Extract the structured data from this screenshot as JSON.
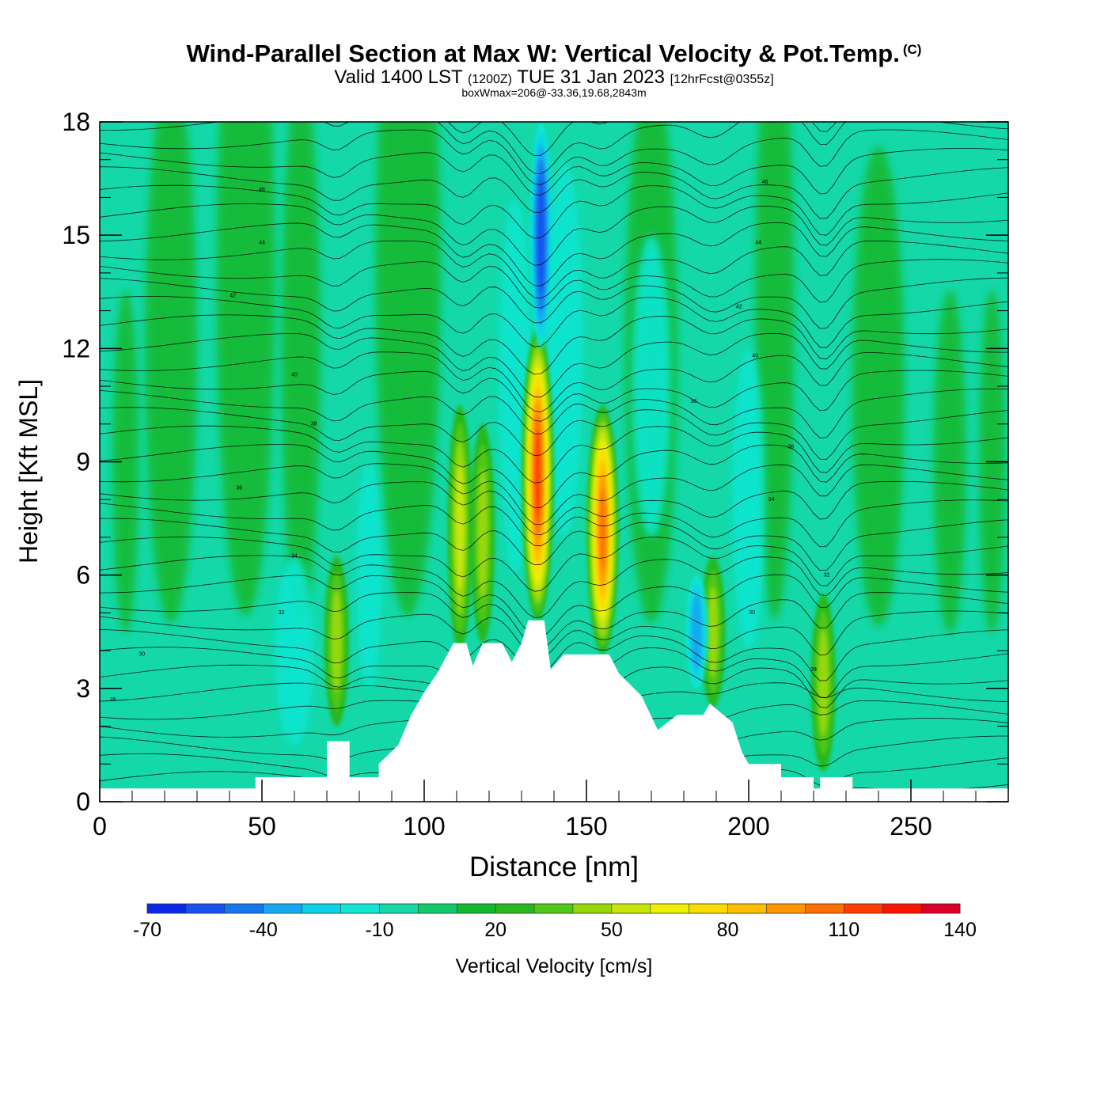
{
  "header": {
    "title": "Wind-Parallel Section at Max W: Vertical Velocity & Pot.Temp.",
    "copyright_mark": "(C)",
    "subtitle_main": "Valid 1400 LST",
    "subtitle_utc": "(1200Z)",
    "subtitle_date": "TUE 31 Jan 2023",
    "subtitle_fcst": "[12hrFcst@0355z]",
    "subsubtitle": "boxWmax=206@-33.36,19.68,2843m"
  },
  "chart_data": {
    "type": "heatmap",
    "title": "Wind-Parallel Section at Max W: Vertical Velocity & Pot.Temp.",
    "xlabel": "Distance [nm]",
    "ylabel": "Height [Kft MSL]",
    "xlim": [
      0,
      280
    ],
    "ylim": [
      0,
      18
    ],
    "x_ticks": [
      "0",
      "50",
      "100",
      "150",
      "200",
      "250"
    ],
    "y_ticks": [
      "0",
      "3",
      "6",
      "9",
      "12",
      "15",
      "18"
    ],
    "colorbar": {
      "label": "Vertical Velocity [cm/s]",
      "range": [
        -70,
        140
      ],
      "step": 10,
      "tick_labels": [
        "-70",
        "-40",
        "-10",
        "20",
        "50",
        "80",
        "110",
        "140"
      ],
      "colors": [
        "#0a28e6",
        "#1950f0",
        "#1478ec",
        "#14a8f0",
        "#0ad2e8",
        "#10e6d2",
        "#14d8a8",
        "#10cc68",
        "#14b82c",
        "#28b81e",
        "#50c818",
        "#96d80a",
        "#c8e60a",
        "#f0f000",
        "#fadc00",
        "#ffbe00",
        "#ff9600",
        "#ff6e00",
        "#ff3c00",
        "#fa1400",
        "#dc0028",
        "#b40050"
      ]
    },
    "terrain_nm_kft": [
      [
        0,
        0.35
      ],
      [
        48,
        0.35
      ],
      [
        48,
        0.65
      ],
      [
        70,
        0.65
      ],
      [
        70,
        1.6
      ],
      [
        77,
        1.6
      ],
      [
        77,
        0.65
      ],
      [
        86,
        0.65
      ],
      [
        86,
        1.0
      ],
      [
        92,
        1.5
      ],
      [
        96,
        2.3
      ],
      [
        100,
        2.9
      ],
      [
        104,
        3.4
      ],
      [
        109,
        4.2
      ],
      [
        113,
        4.2
      ],
      [
        115,
        3.6
      ],
      [
        118,
        4.2
      ],
      [
        124,
        4.2
      ],
      [
        127,
        3.7
      ],
      [
        130,
        4.2
      ],
      [
        132,
        4.8
      ],
      [
        137,
        4.8
      ],
      [
        139,
        3.5
      ],
      [
        143,
        3.9
      ],
      [
        157,
        3.9
      ],
      [
        160,
        3.4
      ],
      [
        167,
        2.8
      ],
      [
        172,
        1.9
      ],
      [
        178,
        2.3
      ],
      [
        186,
        2.3
      ],
      [
        188,
        2.6
      ],
      [
        195,
        2.1
      ],
      [
        198,
        1.3
      ],
      [
        200,
        1.0
      ],
      [
        210,
        1.0
      ],
      [
        210,
        0.65
      ],
      [
        220,
        0.65
      ],
      [
        220,
        0.35
      ],
      [
        222,
        0.35
      ],
      [
        222,
        0.65
      ],
      [
        232,
        0.65
      ],
      [
        232,
        0.35
      ],
      [
        280,
        0.35
      ]
    ],
    "updraft_cores": [
      {
        "center_nm": 73,
        "bottom_kft": 2.0,
        "top_kft": 6.5,
        "peak_cms": 40
      },
      {
        "center_nm": 111,
        "bottom_kft": 4.0,
        "top_kft": 10.5,
        "peak_cms": 50
      },
      {
        "center_nm": 118,
        "bottom_kft": 4.2,
        "top_kft": 10.0,
        "peak_cms": 40
      },
      {
        "center_nm": 135,
        "bottom_kft": 4.8,
        "top_kft": 12.5,
        "peak_cms": 110
      },
      {
        "center_nm": 155,
        "bottom_kft": 3.9,
        "top_kft": 10.5,
        "peak_cms": 100
      },
      {
        "center_nm": 189,
        "bottom_kft": 2.5,
        "top_kft": 6.5,
        "peak_cms": 40
      },
      {
        "center_nm": 223,
        "bottom_kft": 0.8,
        "top_kft": 5.5,
        "peak_cms": 40
      }
    ],
    "downdraft_cores": [
      {
        "center_nm": 136,
        "bottom_kft": 12.0,
        "top_kft": 18.0,
        "peak_cms": -60
      },
      {
        "center_nm": 184,
        "bottom_kft": 3.0,
        "top_kft": 6.0,
        "peak_cms": -40
      }
    ],
    "theta_contour_labels": [
      "46",
      "44",
      "42",
      "40",
      "38",
      "36",
      "34",
      "32",
      "30",
      "28"
    ]
  }
}
